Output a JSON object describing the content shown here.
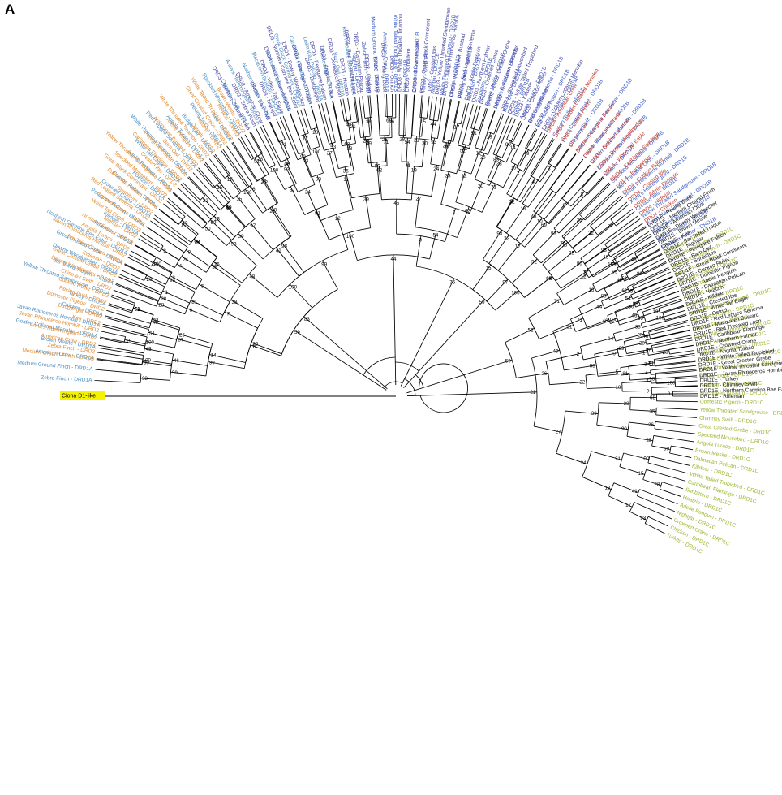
{
  "panel": "A",
  "root_label": "Ciona D1-like",
  "clades": [
    {
      "key": "DRD1A",
      "color": "#4a8fc4",
      "labels": [
        "Zebra Finch - DRD1A",
        "Medium Ground Finch - DRD1A",
        "American Crow - DRD1A",
        "Brown Mesite - DRD1A",
        "Golden Collared Manakin - DRD1A",
        "Javan Rhinoceros Hornbill - DRD1A",
        "Chicken - DRD1A",
        "Turkey - DRD1A",
        "Yellow Throated Sandgrouse - DRD1A",
        "Bar Tailed Trogon - DRD1A",
        "Downy Woodpecker - DRD1A",
        "Great Crested Grebe - DRD1A",
        "Northern Carmine Bee Eater - DRD1A",
        "Rifleman - DRD1A",
        "Killdeer - DRD1A",
        "Peregrine Falcon - DRD1A",
        "Crowned Crane - DRD1A",
        "Cuckoo Roller - DRD1A",
        "Hoatzin - DRD1A",
        "Adelie Penguin - DRD1A",
        "White Tail Eagle - DRD1A",
        "White Throated Tinamou - DRD1A",
        "Red Legged Seriema - DRD1A",
        "Angola Turaco - DRD1A",
        "Budgerigar - DRD1A",
        "Peking Duck - DRD1A",
        "Kea - DRD1A",
        "Speckled Mousebird - DRD1A",
        "Chimney Swift - DRD1A",
        "Anna's Hummingbird - DRD1A",
        "Northern Fulmar - DRD1A",
        "Macqueen Bustard - DRD1A",
        "Domestic Pigeon - DRD1A",
        "Great Black Cormorant - DRD1A",
        "Caribbean Flamingo - DRD1A",
        "Dalmatian Pelican - DRD1A",
        "Crested Ibis - DRD1A",
        "Barn Owl - DRD1A",
        "Red Throated Loon - DRD1A"
      ]
    },
    {
      "key": "DRD1B",
      "color": "#3a5bc4",
      "labels": [
        "Nightjar - DRD1B",
        "Zebra Finch - DRD1B",
        "Medium Ground Finch - DRD1B",
        "American Crow - DRD1B",
        "White Tailed Tropicbird - DRD1B",
        "Kea - DRD1B",
        "Crowned Crane - DRD1B",
        "Turkey - DRD1B",
        "Nightjar - DRD1B",
        "White Throated Tinamou - DRD1B",
        "Chicken - DRD1B",
        "Peking Duck - DRD1B",
        "Rifleman - DRD1B",
        "Sunbittern - DRD1B",
        "Brown Mesite - DRD1B",
        "Peregrine Falcon - DRD1B",
        "Barn Owl - DRD1B",
        "Ostrich - DRD1B",
        "Angola Turaco - DRD1B",
        "Red Legged Seriema - DRD1B",
        "Bar Tailed Trogon - DRD1B",
        "Domestic Pigeon - DRD1B",
        "Cuckoo Roller - DRD1B",
        "Great Crested Grebe - DRD1B",
        "Chimney Swift - DRD1B",
        "Northern Carmine Bee Eater - DRD1B",
        "Downy Woodpecker - DRD1B",
        "Golden Collared Manakin - DRD1B",
        "Caribbean Flamingo - DRD1B",
        "Killdeer - DRD1B",
        "Speckled Mousebird - DRD1B",
        "Red Throated Loon - DRD1B",
        "Javan Rhinoceros Hornbill - DRD1B",
        "Anna's Hummingbird - DRD1B",
        "Crested Ibis - DRD1B",
        "Yellow Throated Sandgrouse - DRD1B",
        "Great Black Cormorant - DRD1B",
        "Macqueen Bustard - DRD1B",
        "Adelie Penguin - DRD1B",
        "Northern Fulmar - DRD1B"
      ]
    },
    {
      "key": "DRD1C",
      "color": "#9bb52f",
      "labels": [
        "Budgerigar - DRD1C",
        "Anna's Hummingbird - DRD1C",
        "Medium Ground Finch - DRD1C",
        "Zebra Finch - DRD1C",
        "Peregrine Falcon - DRD1C",
        "Kea - DRD1C",
        "Rifleman - DRD1C",
        "American Crow - DRD1C",
        "Javan Rhinoceros Hornbill - DRD1C",
        "Bar Tailed Trogon - DRD1C",
        "Cuckoo Roller - DRD1C",
        "Great Black Cormorant - DRD1C",
        "Downy Woodpecker - DRD1C",
        "Red Legged Seriema - DRD1C",
        "Golden Collared Manakin - DRD1C",
        "White Throated Tinamou - DRD1C",
        "Peking Duck - DRD1C",
        "Northern Fulmar - DRD1C",
        "Macqueen Bustard - DRD1C",
        "Domestic Pigeon - DRD1C",
        "Yellow Throated Sandgrouse - DRD1C",
        "Chimney Swift - DRD1C",
        "Great Crested Grebe - DRD1C",
        "Speckled Mousebird - DRD1C",
        "Angola Turaco - DRD1C",
        "Brown Mesite - DRD1C",
        "Dalmatian Pelican - DRD1C",
        "Killdeer - DRD1C",
        "White Tailed Tropicbird - DRD1C",
        "Caribbean Flamingo - DRD1C",
        "Sunbittern - DRD1C",
        "Hoatzin - DRD1C",
        "Adelie Penguin - DRD1C",
        "Nightjar - DRD1C",
        "Crowned Crane - DRD1C",
        "Chicken - DRD1C",
        "Turkey - DRD1C"
      ]
    },
    {
      "key": "DRD1E",
      "color": "#111111",
      "labels": [
        "DRD1E - Peking Duck",
        "DRD1E - Medium Ground Finch",
        "DRD1E - American Crow",
        "DRD1E - Downy Woodpecker",
        "DRD1E - Brown Mesite",
        "DRD1E - Kea",
        "DRD1E - Bar Tailed Trogon",
        "DRD1E - Nightjar",
        "DRD1E - Peregrine Falcon",
        "DRD1E - Barn Owl",
        "DRD1E - Sunbittern",
        "DRD1E - Great Black Cormorant",
        "DRD1E - Cuckoo Roller",
        "DRD1E - Domestic Pigeon",
        "DRD1E - Adelie Penguin",
        "DRD1E - Dalmatian Pelican",
        "DRD1E - Hoatzin",
        "DRD1E - Killdeer",
        "DRD1E - Crested Ibis",
        "DRD1E - White Tail Eagle",
        "DRD1E - Ostrich",
        "DRD1E - Red Legged Seriema",
        "DRD1E - Macqueen Bustard",
        "DRD1E - Red Throated Loon",
        "DRD1E - Caribbean Flamingo",
        "DRD1E - Northern Fulmar",
        "DRD1E - Crowned Crane",
        "DRD1E - Angola Turaco",
        "DRD1E - White Tailed Tropicbird",
        "DRD1E - Great Crested Grebe",
        "DRD1E - Yellow Throated Sandgrouse",
        "DRD1E - Javan Rhinoceros Hornbill",
        "DRD1E - Turkey",
        "DRD1E - Chimney Swift",
        "DRD1E - Northern Carmine Bee Eater",
        "DRD1E - Rifleman"
      ]
    },
    {
      "key": "DRD4",
      "color": "#c0392b",
      "labels": [
        "DRD4 - American Crow",
        "DRD4 - Golden Collared Manakin",
        "DRD4 - Zebra Finch",
        "DRD4 - Kea",
        "DRD4 - Peregrine Falcon",
        "DRD4 - Crowned Crane",
        "DRD4 - Northern Fulmar",
        "DRD4 - Downy Woodpecker",
        "DRD4 - White Tail Eagle",
        "DRD4 - Caribbean Flamingo",
        "DRD4 - Budgerigar",
        "DRD4 - Cuckoo Roller",
        "DRD4 - Crested Ibis",
        "DRD4 - Adelie Penguin",
        "DRD4 - Nightjar",
        "DRD4 - Chicken"
      ]
    },
    {
      "key": "DRD3",
      "color": "#3f3f9e",
      "labels": [
        "DRD3 - Medium Ground Finch",
        "DRD3 - Zebra Finch",
        "DRD3 - American Crow",
        "DRD3 - Barn Owl",
        "DRD3 - Nightjar",
        "DRD3 - White Tail Eagle",
        "DRD3 - Anna's Hummingbird",
        "DRD3 - Northern Carmine Bee Eater",
        "DRD3 - Downy Woodpecker",
        "DRD3 - Bar Tailed Trogon",
        "DRD3 - Budgerigar",
        "DRD3 - Peregrine Falcon",
        "DRD3 - Angola Turaco",
        "DRD3 - Domestic Pigeon",
        "DRD3 - Hoatzin",
        "DRD3 - Red Throated Loon",
        "DRD3 - Dalmatian Pelican",
        "DRD3 - Chicken",
        "DRD3 - Turkey",
        "DRD3 - Peking Duck",
        "DRD3 - Ostrich",
        "DRD3 - White Throated Tinamou",
        "DRD3 - Sunbittern",
        "DRD3 - Brown Mesite",
        "DRD3 - Great Black Cormorant",
        "DRD3 - Crested Ibis",
        "DRD3 - Yellow Throated Sandgrouse",
        "DRD3 - Javan Rhinoceros Hornbill",
        "DRD3 - Macqueen Bustard",
        "DRD3 - Red Legged Seriema",
        "DRD3 - Adelie Penguin",
        "DRD3 - Northern Fulmar",
        "DRD3 - Crowned Crane",
        "DRD3 - Great Crested Grebe",
        "DRD3 - Caribbean Flamingo",
        "DRD3 - Speckled Mousebird",
        "DRD3 - White Tailed Tropicbird",
        "DRD3 - Killdeer",
        "DRD3 - Cuckoo Roller",
        "DRD3 - Rifleman",
        "DRD3 - Kea",
        "DRD3 - Golden Collared Manakin"
      ]
    },
    {
      "key": "DRD2",
      "color": "#e08a2e",
      "labels": [
        "Medium Ground Finch - DRD2",
        "Zebra Finch - DRD2",
        "American Crow - DRD2",
        "Anna's Hummingbird - DRD2",
        "Javan Rhinoceros Hornbill - DRD2",
        "Kea - DRD2",
        "Budgerigar - DRD2",
        "Domestic Pigeon - DRD2",
        "Peking Duck - DRD2",
        "Cuckoo Roller - DRD2",
        "Chimney Swift - DRD2",
        "Downy Woodpecker - DRD2",
        "Great Crested Grebe - DRD2",
        "Rifleman - DRD2",
        "Bar Tailed Trogon - DRD2",
        "Javan Rhinoceros Hornbill - DRD2",
        "Angola Turaco - DRD2",
        "Northern Fulmar - DRD2",
        "Nightjar - DRD2",
        "White Tail Eagle - DRD2",
        "Crowned Crane - DRD2",
        "Red Legged Seriema - DRD2",
        "Sunbittern - DRD2",
        "Dalmatian Pelican - DRD2",
        "Great Black Cormorant - DRD2",
        "Speckled Mousebird - DRD2",
        "Yellow Throated Sandgrouse - DRD2",
        "Crested Ibis - DRD2",
        "Caribbean Flamingo - DRD2",
        "Peregrine Falcon - DRD2",
        "Barn Owl - DRD2",
        "Macqueen Bustard - DRD2",
        "Adelie Penguin - DRD2",
        "White Throated Tinamou - DRD2",
        "Ostrich - DRD2",
        "Killdeer - DRD2",
        "Great Crested Grebe - DRD2",
        "White Tailed Tropicbird - DRD2",
        "Hoatzin - DRD2",
        "Brown Mesite - DRD2"
      ]
    }
  ],
  "bootstrap_values": [
    "98",
    "100",
    "59",
    "100",
    "71",
    "46",
    "87",
    "99",
    "28",
    "100",
    "93",
    "81",
    "53",
    "40",
    "68",
    "35",
    "38",
    "26",
    "69",
    "25",
    "90",
    "39",
    "100",
    "28",
    "15",
    "21",
    "41",
    "93",
    "17",
    "13",
    "24",
    "27",
    "21",
    "18",
    "11",
    "12",
    "99",
    "83",
    "49",
    "16",
    "71",
    "62",
    "54",
    "44",
    "30",
    "19",
    "45",
    "46",
    "51",
    "52",
    "33",
    "25",
    "14",
    "28",
    "20",
    "1",
    "0",
    "2",
    "3",
    "4",
    "5",
    "7",
    "8",
    "9",
    "10",
    "22",
    "26",
    "50",
    "22",
    "18",
    "93",
    "48",
    "69",
    "17",
    "15",
    "97",
    "76",
    "52",
    "25",
    "80"
  ]
}
